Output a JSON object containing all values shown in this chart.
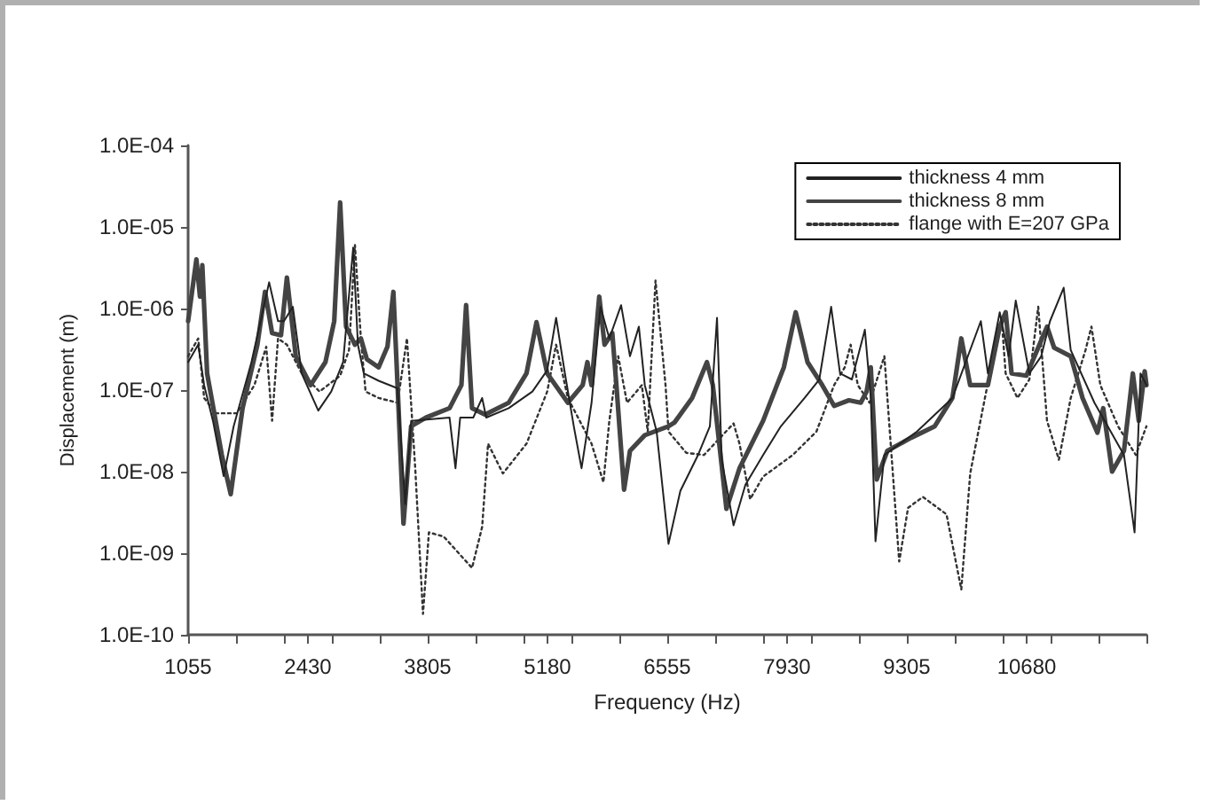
{
  "chart_data": {
    "type": "line",
    "xlabel": "Frequency (Hz)",
    "ylabel": "Displacement (m)",
    "log": "y",
    "grid": false,
    "legend": "top right",
    "marker": "none",
    "xlim": [
      1055,
      12055
    ],
    "xticks": [
      1055,
      {
        "value": 1605,
        "label": null
      },
      {
        "value": 2155,
        "label": null
      },
      2430,
      {
        "value": 2705,
        "label": null
      },
      {
        "value": 3255,
        "label": null
      },
      3805,
      {
        "value": 4355,
        "label": null
      },
      {
        "value": 4905,
        "label": null
      },
      5180,
      {
        "value": 5455,
        "label": null
      },
      {
        "value": 6005,
        "label": null
      },
      6555,
      {
        "value": 7105,
        "label": null
      },
      {
        "value": 7655,
        "label": null
      },
      7930,
      {
        "value": 8205,
        "label": null
      },
      {
        "value": 8755,
        "label": null
      },
      9305,
      {
        "value": 9855,
        "label": null
      },
      {
        "value": 10405,
        "label": null
      },
      10680,
      {
        "value": 10955,
        "label": null
      },
      {
        "value": 11505,
        "label": null
      },
      {
        "value": 12055,
        "label": null
      }
    ],
    "ylim": [
      1e-10,
      0.0001
    ],
    "yticks": [
      {
        "value": 1e-10,
        "label": "1.0E-10"
      },
      {
        "value": 1e-09,
        "label": "1.0E-09"
      },
      {
        "value": 1e-08,
        "label": "1.0E-08"
      },
      {
        "value": 1e-07,
        "label": "1.0E-07"
      },
      {
        "value": 1e-06,
        "label": "1.0E-06"
      },
      {
        "value": 1e-05,
        "label": "1.0E-05"
      },
      {
        "value": 0.0001,
        "label": "1.0E-04"
      }
    ],
    "series": [
      {
        "name": "thickness 4 mm",
        "color": "#222222",
        "line_style": "solid",
        "x": [
          1055,
          1171,
          1239,
          1340,
          1463,
          1578,
          1782,
          1985,
          2087,
          2155,
          2257,
          2359,
          2549,
          2698,
          2834,
          2950,
          3004,
          3072,
          3242,
          3459,
          3547,
          3615,
          4056,
          4124,
          4178,
          4328,
          4430,
          4477,
          4735,
          5007,
          5177,
          5279,
          5380,
          5482,
          5571,
          5686,
          5788,
          5890,
          6025,
          6127,
          6229,
          6297,
          6433,
          6569,
          6705,
          6908,
          7044,
          7126,
          7180,
          7316,
          7452,
          7655,
          7859,
          8131,
          8300,
          8436,
          8538,
          8674,
          8823,
          8891,
          8945,
          9047,
          9421,
          9828,
          10154,
          10235,
          10371,
          10473,
          10555,
          10711,
          10847,
          10948,
          11105,
          11186,
          11458,
          11797,
          11919,
          11987,
          12055
        ],
        "values": [
          2.2e-07,
          3.6e-07,
          1.15e-07,
          4.2e-08,
          8.8e-09,
          3.6e-08,
          2.2e-07,
          2.1e-06,
          7e-07,
          7e-07,
          1.05e-06,
          1.6e-07,
          5.6e-08,
          9.6e-08,
          2.2e-07,
          5.6e-06,
          3.6e-07,
          1.6e-07,
          1.3e-07,
          1.05e-07,
          4e-09,
          4.2e-08,
          4.6e-08,
          1.1e-08,
          4.6e-08,
          4.6e-08,
          8e-08,
          4.6e-08,
          6e-08,
          9.6e-08,
          1.75e-07,
          7.7e-07,
          1.6e-07,
          3.6e-08,
          1.1e-08,
          7e-08,
          1.05e-06,
          4.3e-07,
          1.1e-06,
          2.6e-07,
          6e-07,
          1.15e-07,
          3.1e-08,
          1.3e-09,
          5.8e-09,
          1.6e-08,
          3.6e-08,
          7.7e-07,
          1.4e-08,
          2.2e-09,
          6.9e-09,
          1.6e-08,
          3.6e-08,
          8e-08,
          1.35e-07,
          1.05e-06,
          1.6e-07,
          1.35e-07,
          5.5e-07,
          8e-08,
          1.4e-09,
          1.6e-08,
          3.1e-08,
          8e-08,
          7e-07,
          1.6e-07,
          9e-07,
          2.6e-07,
          1.25e-06,
          1.6e-07,
          2.6e-07,
          7e-07,
          1.8e-06,
          3.1e-07,
          7e-08,
          1.6e-08,
          1.8e-09,
          1.6e-07,
          1.15e-07
        ]
      },
      {
        "name": "thickness 8 mm",
        "color": "#444444",
        "line_style": "solid",
        "x": [
          1055,
          1150,
          1191,
          1218,
          1273,
          1442,
          1544,
          1680,
          1850,
          1938,
          2019,
          2121,
          2189,
          2291,
          2461,
          2631,
          2732,
          2800,
          2868,
          2970,
          3038,
          3106,
          3242,
          3343,
          3411,
          3459,
          3527,
          3615,
          3785,
          4056,
          4192,
          4246,
          4314,
          4464,
          4735,
          4939,
          5054,
          5177,
          5414,
          5584,
          5638,
          5686,
          5774,
          5835,
          5924,
          5971,
          6059,
          6127,
          6297,
          6569,
          6637,
          6840,
          7010,
          7078,
          7234,
          7384,
          7655,
          7893,
          8029,
          8165,
          8334,
          8470,
          8640,
          8776,
          8843,
          8891,
          8959,
          9081,
          9353,
          9624,
          9828,
          9930,
          10032,
          10235,
          10371,
          10439,
          10507,
          10677,
          10914,
          10996,
          11186,
          11322,
          11492,
          11559,
          11661,
          11797,
          11899,
          11967,
          12035,
          12055
        ],
        "values": [
          7e-07,
          4e-06,
          1.4e-06,
          3.4e-06,
          1.6e-07,
          1.6e-08,
          5.3e-09,
          6e-08,
          3.6e-07,
          1.6e-06,
          5e-07,
          4.7e-07,
          2.4e-06,
          2.6e-07,
          1.15e-07,
          2.2e-07,
          7e-07,
          2e-05,
          6e-07,
          3.6e-07,
          4.3e-07,
          2.4e-07,
          1.9e-07,
          3.4e-07,
          1.6e-06,
          1.15e-07,
          2.3e-09,
          3.6e-08,
          4.6e-08,
          6e-08,
          1.15e-07,
          1.1e-06,
          6e-08,
          5e-08,
          7e-08,
          1.6e-07,
          6.8e-07,
          1.6e-07,
          7e-08,
          1.15e-07,
          2.2e-07,
          1.15e-07,
          1.4e-06,
          3.6e-07,
          5e-07,
          1.15e-07,
          6e-09,
          1.8e-08,
          2.8e-08,
          3.6e-08,
          4e-08,
          8e-08,
          2.2e-07,
          1.15e-07,
          3.5e-09,
          1.1e-08,
          4.2e-08,
          1.9e-07,
          9e-07,
          2.2e-07,
          1.15e-07,
          6.4e-08,
          7.5e-08,
          7e-08,
          9.6e-08,
          1.9e-07,
          8e-09,
          1.8e-08,
          2.6e-08,
          3.6e-08,
          8e-08,
          4.3e-07,
          1.15e-07,
          1.15e-07,
          6e-07,
          9e-07,
          1.6e-07,
          1.5e-07,
          6e-07,
          3.3e-07,
          2.6e-07,
          8e-08,
          3e-08,
          6e-08,
          1e-08,
          1.8e-08,
          1.6e-07,
          4.2e-08,
          1.7e-07,
          1.15e-07
        ]
      },
      {
        "name": "flange with E=207 GPa",
        "color": "#333333",
        "line_style": "dotted",
        "x": [
          1055,
          1171,
          1239,
          1374,
          1612,
          1816,
          1952,
          2019,
          2087,
          2189,
          2359,
          2563,
          2800,
          2902,
          2970,
          3038,
          3092,
          3242,
          3459,
          3567,
          3662,
          3751,
          3819,
          3989,
          4314,
          4430,
          4498,
          4668,
          4939,
          5177,
          5279,
          5414,
          5686,
          5822,
          5890,
          5992,
          6093,
          6263,
          6331,
          6420,
          6535,
          6569,
          6773,
          6976,
          7316,
          7384,
          7506,
          7655,
          7995,
          8267,
          8470,
          8592,
          8660,
          8742,
          8877,
          9047,
          9135,
          9217,
          9319,
          9489,
          9760,
          9930,
          10032,
          10201,
          10337,
          10392,
          10439,
          10575,
          10711,
          10813,
          10914,
          11050,
          11186,
          11356,
          11424,
          11526,
          11729,
          11933,
          12055
        ],
        "values": [
          2.6e-07,
          4.3e-07,
          8e-08,
          5.2e-08,
          5.2e-08,
          1.15e-07,
          3.4e-07,
          4.2e-08,
          4.3e-07,
          3.6e-07,
          1.6e-07,
          9.6e-08,
          1.5e-07,
          3.1e-07,
          6e-06,
          4.3e-07,
          9.6e-08,
          8e-08,
          7e-08,
          4.3e-07,
          1.1e-08,
          1.8e-10,
          1.8e-09,
          1.6e-09,
          6.6e-10,
          2.1e-09,
          2.2e-08,
          9.5e-09,
          2.2e-08,
          9.6e-08,
          3.6e-07,
          8e-08,
          2.2e-08,
          7.4e-09,
          4.2e-08,
          2.6e-07,
          7e-08,
          1.15e-07,
          3.1e-08,
          2.2e-06,
          1.15e-07,
          3.1e-08,
          1.7e-08,
          1.6e-08,
          3.9e-08,
          2.2e-08,
          4.6e-09,
          8.7e-09,
          1.6e-08,
          3.1e-08,
          1.15e-07,
          1.9e-07,
          3.6e-07,
          1.15e-07,
          7e-08,
          2.6e-07,
          1.3e-08,
          7.9e-10,
          3.6e-09,
          4.9e-09,
          3e-09,
          3.6e-10,
          9.5e-09,
          8e-08,
          4.3e-07,
          7.7e-07,
          1.6e-07,
          8e-08,
          1.35e-07,
          1.05e-06,
          4.2e-08,
          1.4e-08,
          8e-08,
          3.1e-07,
          6e-07,
          1.15e-07,
          3.6e-08,
          1.6e-08,
          3.6e-08
        ]
      }
    ]
  }
}
